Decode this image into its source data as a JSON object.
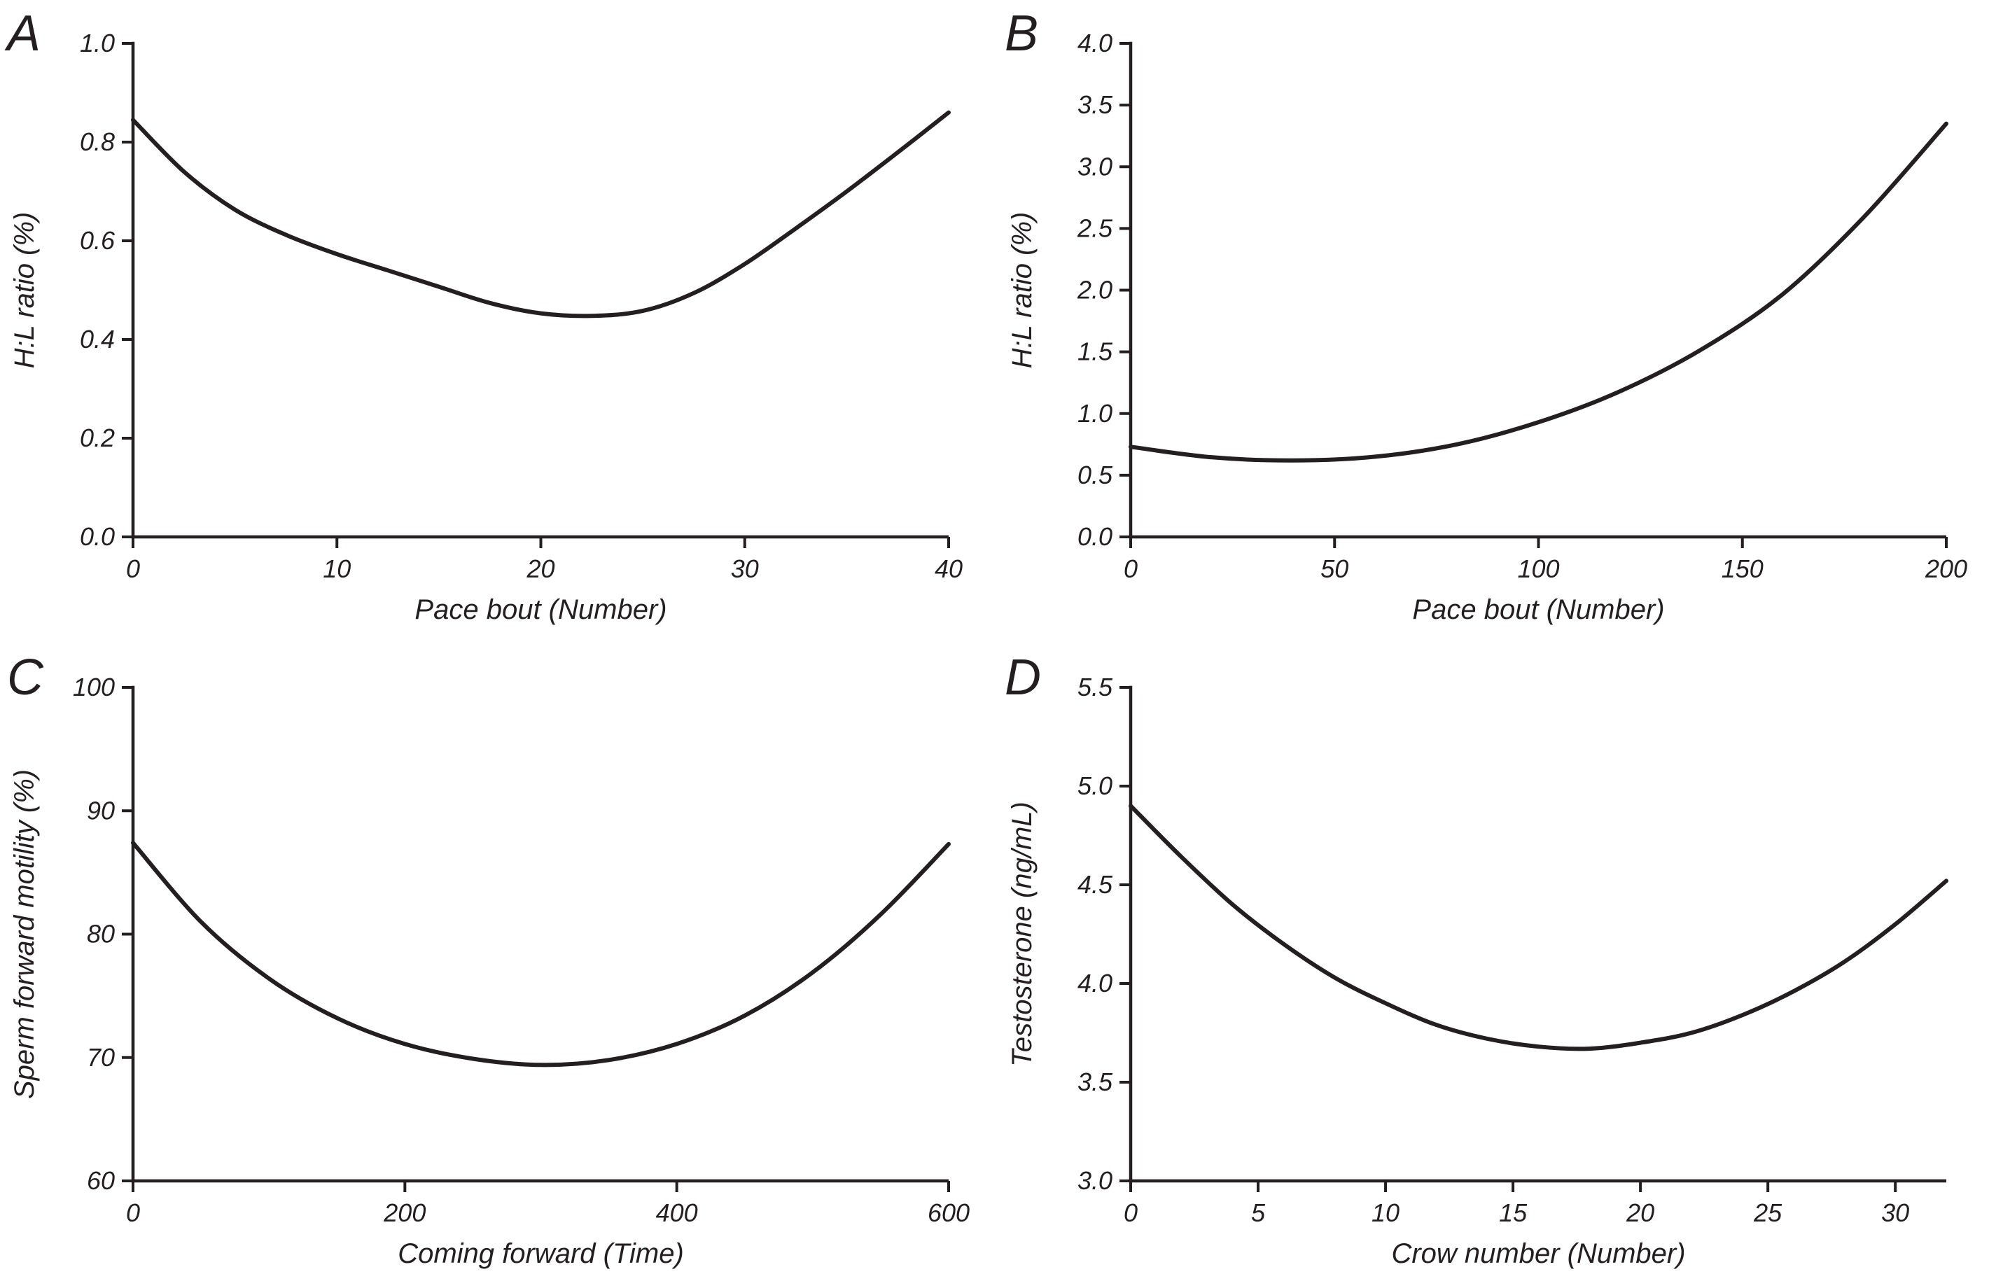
{
  "figure": {
    "background": "#ffffff",
    "ink_color": "#231f20",
    "panel_count": 4
  },
  "chart_data": [
    {
      "panel_label": "A",
      "type": "line",
      "xlabel": "Pace bout (Number)",
      "ylabel": "H:L ratio (%)",
      "xlim": [
        0,
        40
      ],
      "ylim": [
        0.0,
        1.0
      ],
      "xtick_values": [
        0,
        10,
        20,
        30,
        40
      ],
      "xtick_labels": [
        "0",
        "10",
        "20",
        "30",
        "40"
      ],
      "ytick_values": [
        0.0,
        0.2,
        0.4,
        0.6,
        0.8,
        1.0
      ],
      "ytick_labels": [
        "0.0",
        "0.2",
        "0.4",
        "0.6",
        "0.8",
        "1.0"
      ],
      "line_color": "#231f20",
      "x": [
        0,
        2.5,
        5,
        7.5,
        10,
        12.5,
        15,
        17.5,
        20,
        22.5,
        25,
        27.5,
        30,
        32.5,
        35,
        37.5,
        40
      ],
      "y": [
        0.845,
        0.74,
        0.663,
        0.612,
        0.573,
        0.54,
        0.507,
        0.474,
        0.453,
        0.448,
        0.458,
        0.494,
        0.553,
        0.625,
        0.7,
        0.779,
        0.86
      ]
    },
    {
      "panel_label": "B",
      "type": "line",
      "xlabel": "Pace bout (Number)",
      "ylabel": "H:L ratio (%)",
      "xlim": [
        0,
        200
      ],
      "ylim": [
        0.0,
        4.0
      ],
      "xtick_values": [
        0,
        50,
        100,
        150,
        200
      ],
      "xtick_labels": [
        "0",
        "50",
        "100",
        "150",
        "200"
      ],
      "ytick_values": [
        0.0,
        0.5,
        1.0,
        1.5,
        2.0,
        2.5,
        3.0,
        3.5,
        4.0
      ],
      "ytick_labels": [
        "0.0",
        "0.5",
        "1.0",
        "1.5",
        "2.0",
        "2.5",
        "3.0",
        "3.5",
        "4.0"
      ],
      "line_color": "#231f20",
      "x": [
        0,
        20,
        40,
        60,
        80,
        100,
        120,
        140,
        160,
        180,
        200
      ],
      "y": [
        0.73,
        0.645,
        0.62,
        0.65,
        0.75,
        0.93,
        1.18,
        1.52,
        1.97,
        2.6,
        3.35
      ]
    },
    {
      "panel_label": "C",
      "type": "line",
      "xlabel": "Coming forward (Time)",
      "ylabel": "Sperm forward motility (%)",
      "xlim": [
        0,
        600
      ],
      "ylim": [
        60,
        100
      ],
      "xtick_values": [
        0,
        200,
        400,
        600
      ],
      "xtick_labels": [
        "0",
        "200",
        "400",
        "600"
      ],
      "ytick_values": [
        60,
        70,
        80,
        90,
        100
      ],
      "ytick_labels": [
        "60",
        "70",
        "80",
        "90",
        "100"
      ],
      "line_color": "#231f20",
      "x": [
        0,
        50,
        100,
        150,
        200,
        250,
        300,
        350,
        400,
        450,
        500,
        550,
        600
      ],
      "y": [
        87.4,
        81.0,
        76.4,
        73.2,
        71.1,
        69.9,
        69.4,
        69.8,
        71.1,
        73.4,
        76.9,
        81.6,
        87.3
      ]
    },
    {
      "panel_label": "D",
      "type": "line",
      "xlabel": "Crow number (Number)",
      "ylabel": "Testosterone (ng/mL)",
      "xlim": [
        0,
        32
      ],
      "ylim": [
        3.0,
        5.5
      ],
      "xtick_values": [
        0,
        5,
        10,
        15,
        20,
        25,
        30
      ],
      "xtick_labels": [
        "0",
        "5",
        "10",
        "15",
        "20",
        "25",
        "30"
      ],
      "ytick_values": [
        3.0,
        3.5,
        4.0,
        4.5,
        5.0,
        5.5
      ],
      "ytick_labels": [
        "3.0",
        "3.5",
        "4.0",
        "4.5",
        "5.0",
        "5.5"
      ],
      "line_color": "#231f20",
      "x": [
        0,
        2,
        4,
        6,
        8,
        10,
        12,
        14,
        16,
        18,
        20,
        22,
        24,
        26,
        28,
        30,
        32
      ],
      "y": [
        4.9,
        4.64,
        4.4,
        4.2,
        4.03,
        3.9,
        3.79,
        3.72,
        3.68,
        3.67,
        3.7,
        3.75,
        3.84,
        3.96,
        4.11,
        4.3,
        4.52
      ]
    }
  ]
}
